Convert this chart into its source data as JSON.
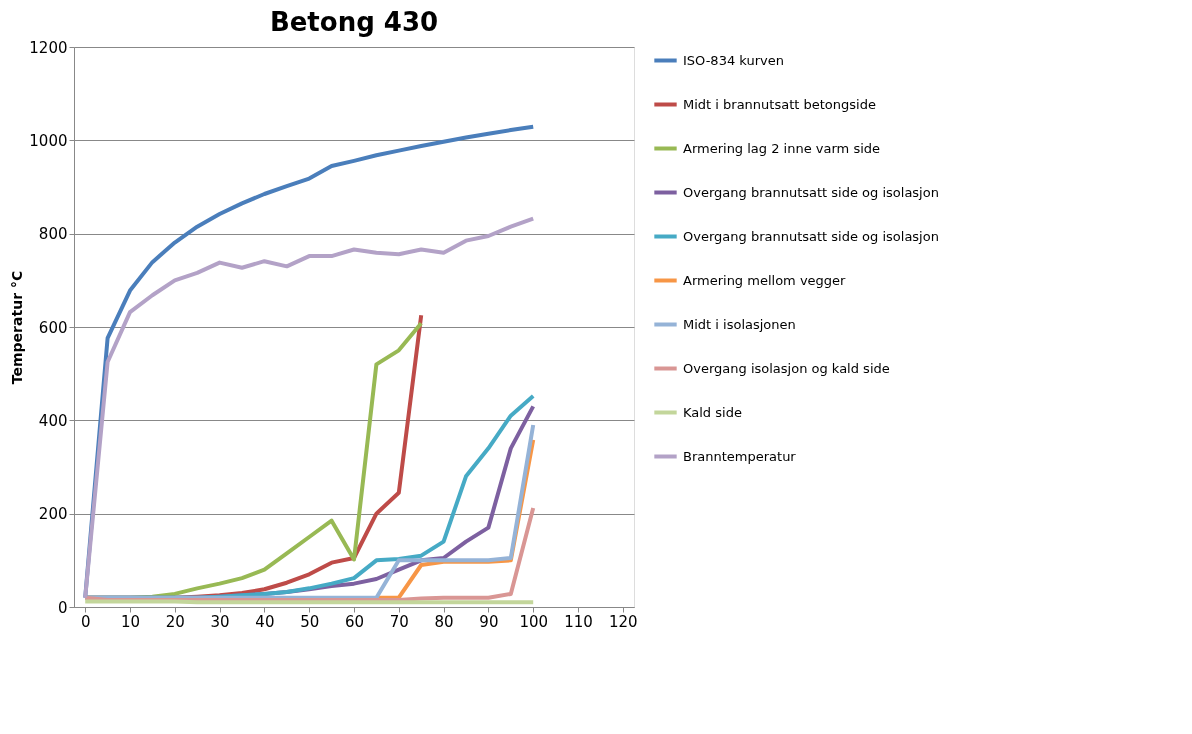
{
  "chart_data": {
    "type": "line",
    "title": "Betong 430",
    "ylabel": "Temperatur °C",
    "x": [
      0,
      5,
      10,
      15,
      20,
      25,
      30,
      35,
      40,
      45,
      50,
      55,
      60,
      65,
      70,
      75,
      80,
      85,
      90,
      95,
      100
    ],
    "xlim": [
      -2.5,
      122.5
    ],
    "xticks": [
      0,
      10,
      20,
      30,
      40,
      50,
      60,
      70,
      80,
      90,
      100,
      110,
      120
    ],
    "ylim": [
      0,
      1200
    ],
    "yticks": [
      0,
      200,
      400,
      600,
      800,
      {
        "value": 1000,
        "label": "1000"
      },
      {
        "value": 1200,
        "label": "1200"
      }
    ],
    "grid": "y",
    "legend": "right",
    "marker": "none",
    "line_style": "solid",
    "series": [
      {
        "name": "ISO-834 kurven",
        "color": "#4a7ebb",
        "values": [
          20,
          576,
          678,
          739,
          781,
          815,
          842,
          865,
          885,
          902,
          918,
          945,
          956,
          968,
          978,
          988,
          997,
          1006,
          1014,
          1022,
          1029
        ]
      },
      {
        "name": "Midt i brannutsatt betongside",
        "color": "#be4b48",
        "values": [
          20,
          20,
          20,
          20,
          20,
          22,
          25,
          30,
          38,
          52,
          70,
          95,
          105,
          200,
          245,
          625,
          null,
          null,
          null,
          null,
          null
        ]
      },
      {
        "name": "Armering lag 2 inne varm side",
        "color": "#98b954",
        "values": [
          20,
          20,
          20,
          22,
          28,
          40,
          50,
          62,
          80,
          115,
          150,
          185,
          102,
          520,
          550,
          608,
          null,
          null,
          null,
          null,
          null
        ]
      },
      {
        "name": "Overgang brannutsatt side og isolasjon",
        "color": "#7d60a0",
        "values": [
          20,
          20,
          20,
          20,
          20,
          20,
          22,
          25,
          28,
          32,
          38,
          45,
          50,
          60,
          80,
          100,
          105,
          140,
          170,
          340,
          430
        ]
      },
      {
        "name": "Overgang brannutsatt side og isolasjon",
        "color": "#46aac5",
        "values": [
          20,
          20,
          20,
          20,
          20,
          20,
          22,
          25,
          28,
          32,
          40,
          50,
          62,
          100,
          103,
          110,
          140,
          280,
          340,
          410,
          452
        ]
      },
      {
        "name": "Armering mellom vegger",
        "color": "#f79646",
        "values": [
          null,
          null,
          null,
          null,
          null,
          null,
          null,
          null,
          null,
          null,
          null,
          null,
          null,
          20,
          20,
          90,
          97,
          97,
          97,
          100,
          358
        ]
      },
      {
        "name": "Midt i isolasjonen",
        "color": "#95b3d7",
        "values": [
          20,
          20,
          20,
          20,
          20,
          20,
          20,
          20,
          20,
          20,
          20,
          20,
          20,
          20,
          100,
          100,
          100,
          100,
          100,
          105,
          390
        ]
      },
      {
        "name": "Overgang isolasjon og kald side",
        "color": "#d99694",
        "values": [
          20,
          15,
          15,
          15,
          15,
          15,
          15,
          15,
          15,
          15,
          15,
          15,
          15,
          15,
          15,
          18,
          20,
          20,
          20,
          28,
          212
        ]
      },
      {
        "name": "Kald side",
        "color": "#c3d69b",
        "values": [
          12,
          12,
          12,
          12,
          12,
          10,
          10,
          10,
          10,
          10,
          10,
          10,
          10,
          10,
          10,
          10,
          10,
          10,
          10,
          10,
          10
        ]
      },
      {
        "name": "Branntemperatur",
        "color": "#b3a2c7",
        "values": [
          20,
          525,
          632,
          668,
          700,
          716,
          738,
          727,
          741,
          730,
          752,
          752,
          766,
          759,
          756,
          766,
          759,
          785,
          795,
          815,
          832
        ]
      }
    ]
  }
}
